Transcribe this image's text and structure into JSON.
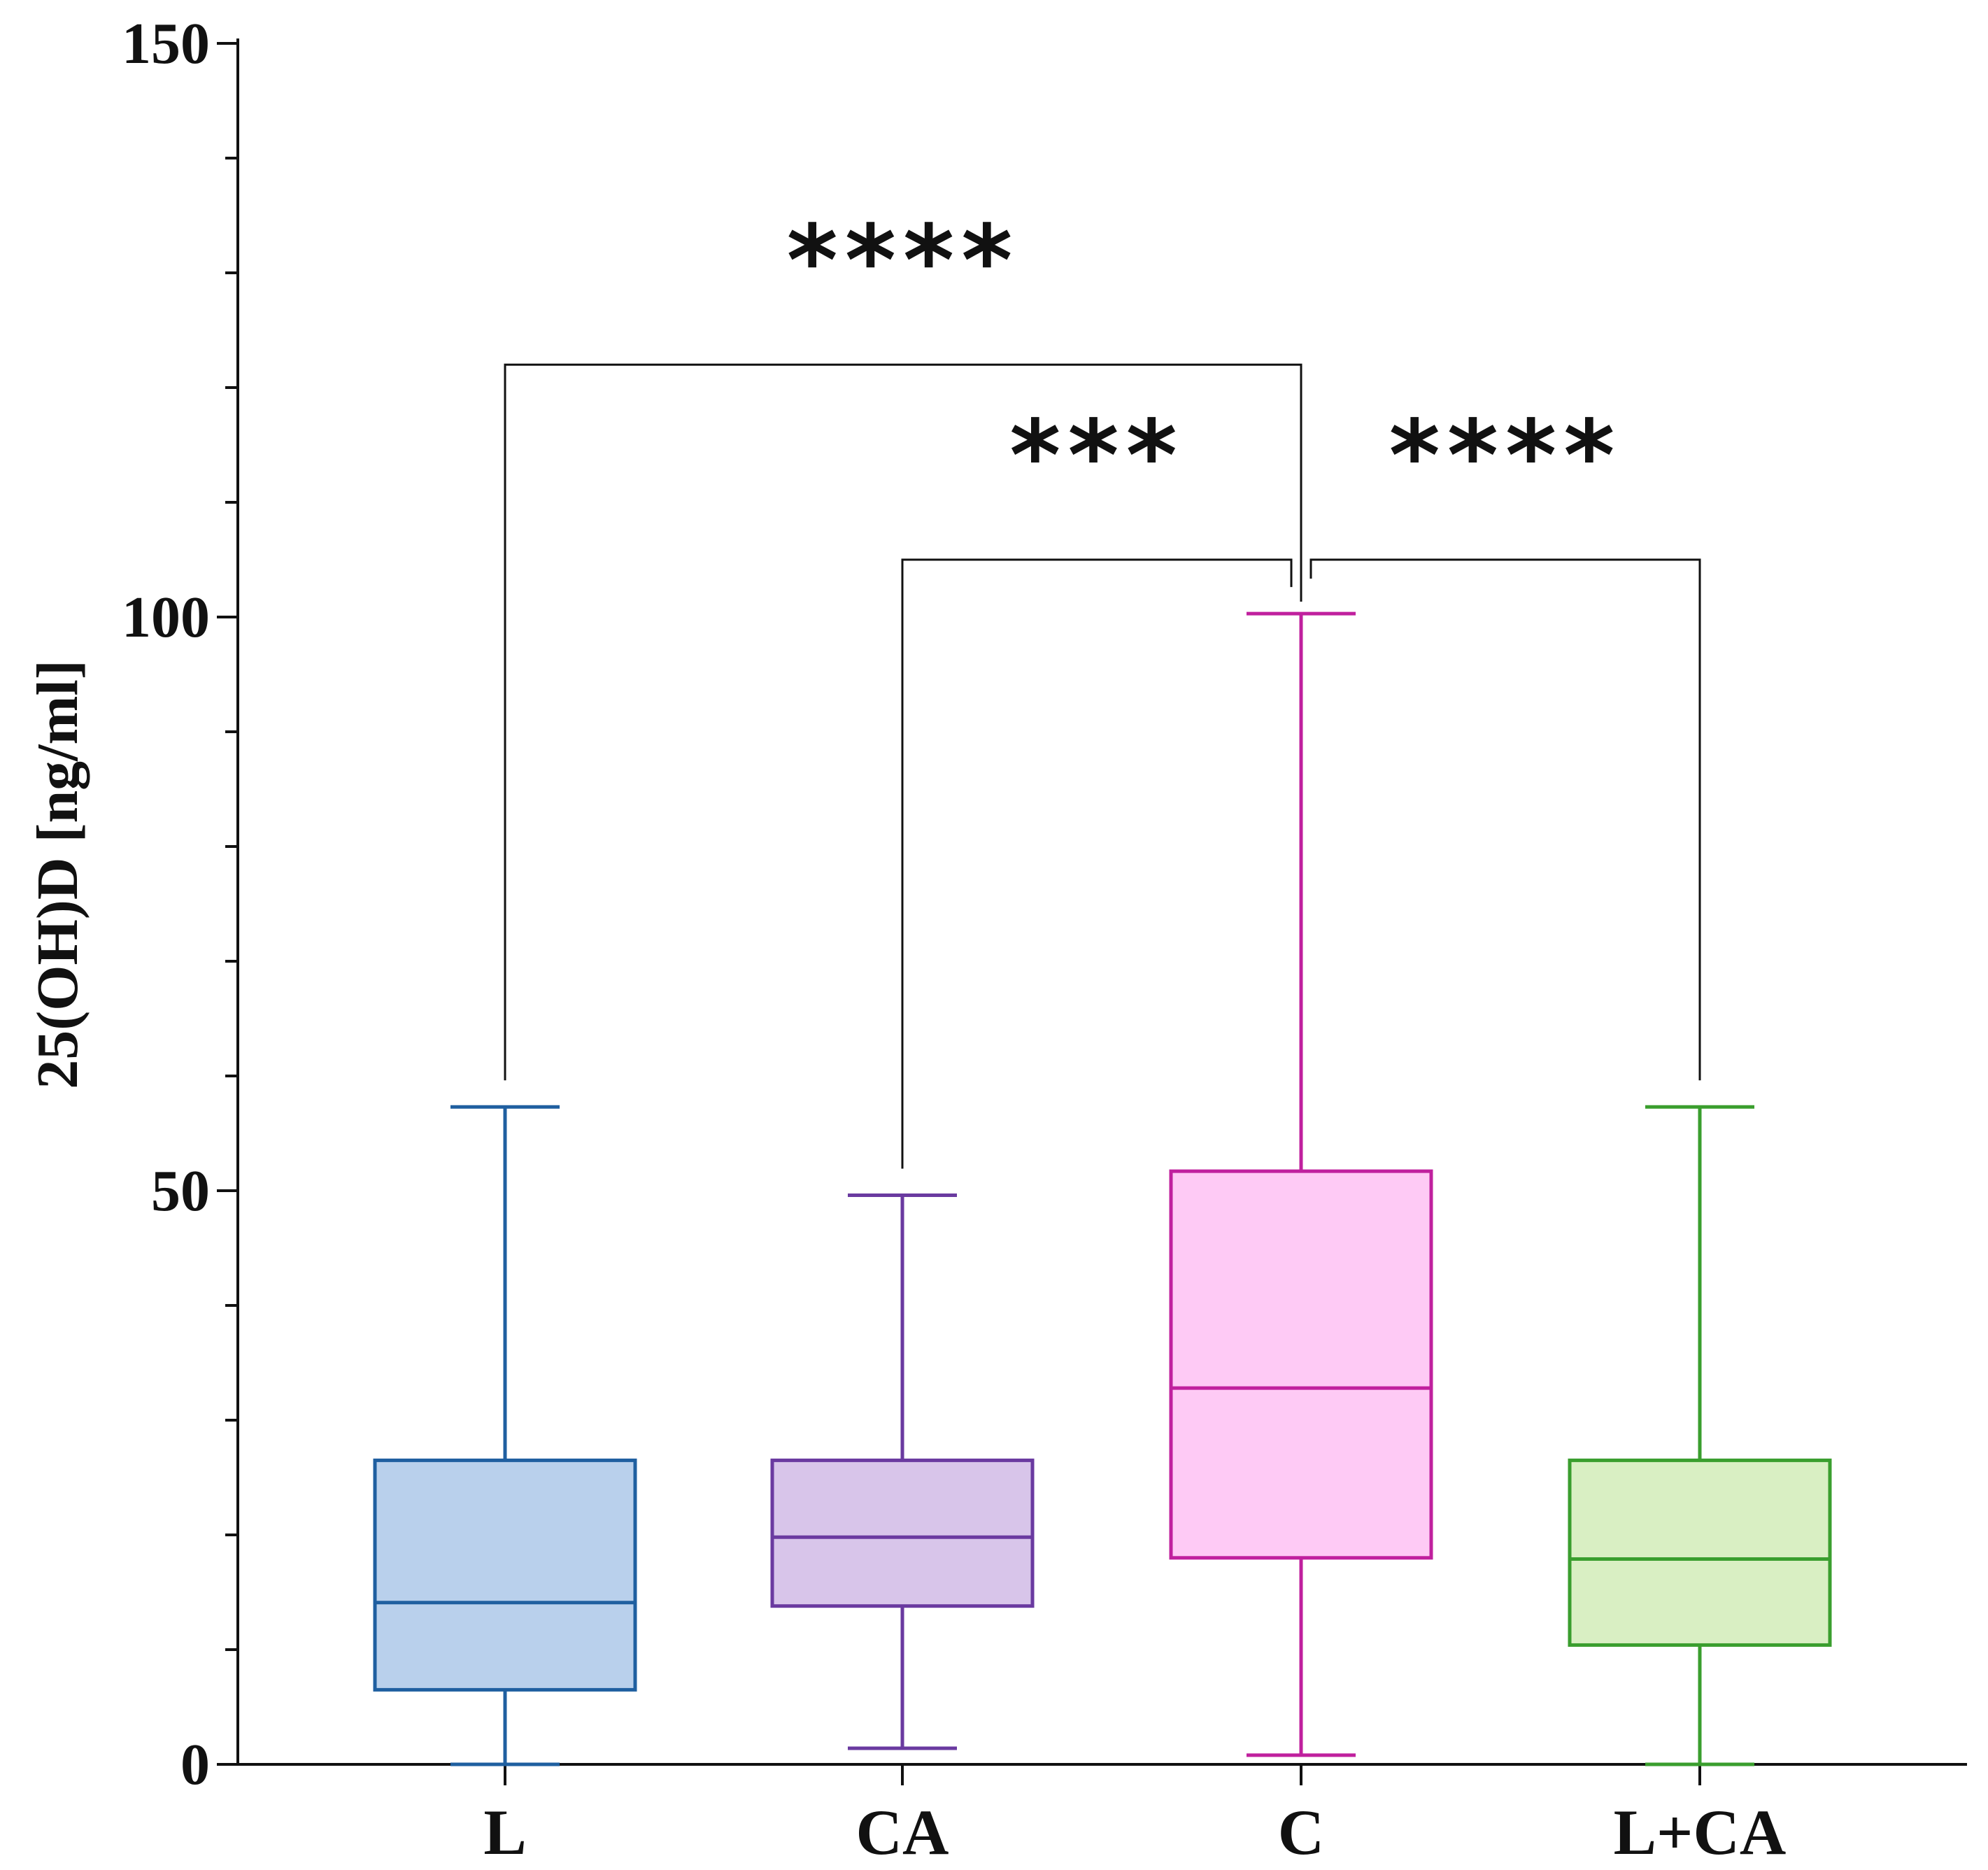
{
  "chart_data": {
    "type": "box",
    "title": "",
    "xlabel": "",
    "ylabel": "25(OH)D [ng/ml]",
    "ylim": [
      0,
      150
    ],
    "yticks_major": [
      0,
      50,
      100,
      150
    ],
    "yticks_minor": [
      10,
      20,
      30,
      40,
      60,
      70,
      80,
      90,
      110,
      120,
      130,
      140
    ],
    "grid": false,
    "categories": [
      "L",
      "CA",
      "C",
      "L+CA"
    ],
    "boxes": [
      {
        "name": "L",
        "min": 0.0,
        "q1": 6.5,
        "median": 14.1,
        "q3": 26.5,
        "max": 57.3,
        "stroke": "#1f5fa0",
        "fill": "#b9d0ec"
      },
      {
        "name": "CA",
        "min": 1.4,
        "q1": 13.8,
        "median": 19.8,
        "q3": 26.5,
        "max": 49.6,
        "stroke": "#6a3aa0",
        "fill": "#d8c5ea"
      },
      {
        "name": "C",
        "min": 0.8,
        "q1": 18.0,
        "median": 32.8,
        "q3": 51.7,
        "max": 100.3,
        "stroke": "#c0209e",
        "fill": "#fecaf5"
      },
      {
        "name": "L+CA",
        "min": 0.0,
        "q1": 10.4,
        "median": 17.9,
        "q3": 26.5,
        "max": 57.3,
        "stroke": "#3a9e2e",
        "fill": "#d9efc3"
      }
    ],
    "significance": [
      {
        "from": "L",
        "to": "C",
        "label": "****",
        "level": 122
      },
      {
        "from": "CA",
        "to": "C",
        "label": "***",
        "level": 105
      },
      {
        "from": "C",
        "to": "L+CA",
        "label": "****",
        "level": 105
      }
    ]
  }
}
